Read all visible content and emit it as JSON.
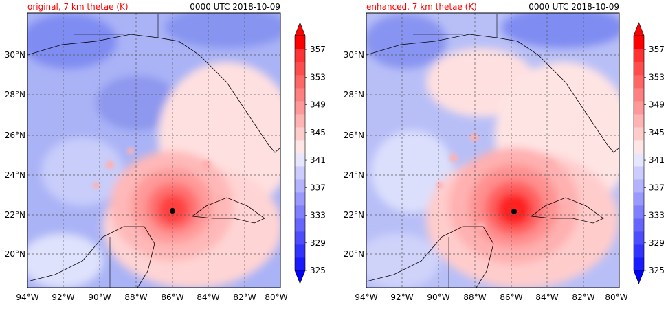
{
  "panels": [
    {
      "title_left": "original, 7 km thetae (K)",
      "title_right": "0000 UTC 2018-10-09",
      "center_marker": {
        "lon": -86.0,
        "lat": 22.2
      }
    },
    {
      "title_left": "enhanced, 7 km thetae (K)",
      "title_right": "0000 UTC 2018-10-09",
      "center_marker": {
        "lon": -85.8,
        "lat": 22.2
      }
    }
  ],
  "lat_labels": [
    "30°N",
    "28°N",
    "26°N",
    "24°N",
    "22°N",
    "20°N"
  ],
  "lat_values": [
    30,
    28,
    26,
    24,
    22,
    20
  ],
  "lon_labels": [
    "94°W",
    "92°W",
    "90°W",
    "88°W",
    "86°W",
    "84°W",
    "82°W",
    "80°W"
  ],
  "lon_values": [
    -94,
    -92,
    -90,
    -88,
    -86,
    -84,
    -82,
    -80
  ],
  "colorbar": {
    "labels": [
      "325",
      "329",
      "333",
      "337",
      "341",
      "345",
      "349",
      "353",
      "357"
    ],
    "levels": [
      325,
      327,
      329,
      331,
      333,
      335,
      337,
      339,
      341,
      343,
      345,
      347,
      349,
      351,
      353,
      355,
      357,
      359
    ],
    "colors": [
      "#1a1aff",
      "#3333ff",
      "#4d4dff",
      "#6666ff",
      "#8080ff",
      "#9999ff",
      "#b3b3ff",
      "#ccccff",
      "#e6e6ff",
      "#ffe6e6",
      "#ffcccc",
      "#ffb3b3",
      "#ff9999",
      "#ff8080",
      "#ff6666",
      "#ff4d4d",
      "#ff3333",
      "#ff0000"
    ],
    "under_color": "#0000ff",
    "over_color": "#ff0000"
  },
  "colors": {
    "title_left": "#ff0000",
    "background_blue": "#a9b2f5"
  }
}
